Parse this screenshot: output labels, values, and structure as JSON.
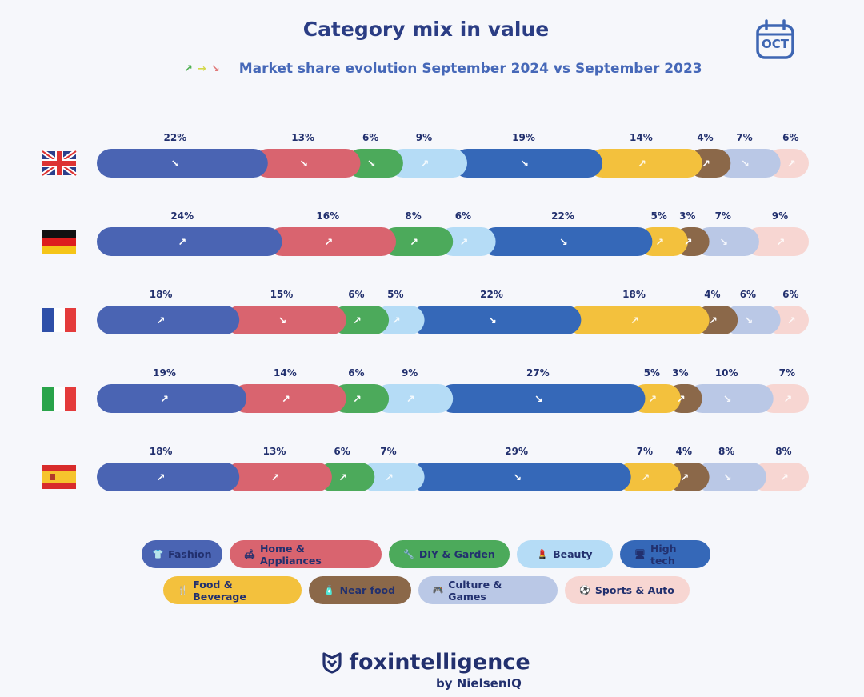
{
  "title": "Category mix in value",
  "subtitle": "Market share evolution September 2024 vs September 2023",
  "legend_arrows": [
    {
      "glyph": "↗",
      "color": "#4caf50"
    },
    {
      "glyph": "→",
      "color": "#d4d84a"
    },
    {
      "glyph": "↘",
      "color": "#e07a7a"
    }
  ],
  "calendar_label": "OCT",
  "brand": {
    "name": "foxintelligence",
    "byline": "by NielsenIQ"
  },
  "colors": {
    "Fashion": "#4a64b3",
    "Home & Appliances": "#d9646f",
    "DIY & Garden": "#4caa5b",
    "Beauty": "#b5dcf6",
    "High tech": "#3568b8",
    "Food & Beverage": "#f3c13d",
    "Near food": "#8b6849",
    "Culture & Games": "#bac8e6",
    "Sports & Auto": "#f7d6d2"
  },
  "legend": [
    {
      "label": "Fashion",
      "icon": "shirt-icon",
      "glyph": "👕"
    },
    {
      "label": "Home & Appliances",
      "icon": "sofa-icon",
      "glyph": "🛋"
    },
    {
      "label": "DIY & Garden",
      "icon": "tools-icon",
      "glyph": "🔧"
    },
    {
      "label": "Beauty",
      "icon": "lipstick-icon",
      "glyph": "💄"
    },
    {
      "label": "High tech",
      "icon": "monitor-icon",
      "glyph": "🖥"
    },
    {
      "label": "Food & Beverage",
      "icon": "cutlery-icon",
      "glyph": "🍴"
    },
    {
      "label": "Near food",
      "icon": "bottle-icon",
      "glyph": "🧴"
    },
    {
      "label": "Culture & Games",
      "icon": "gamepad-icon",
      "glyph": "🎮"
    },
    {
      "label": "Sports & Auto",
      "icon": "ball-icon",
      "glyph": "⚽"
    }
  ],
  "chart_data": {
    "type": "bar",
    "orientation": "horizontal",
    "stacked": true,
    "title": "Category mix in value",
    "subtitle": "Market share evolution September 2024 vs September 2023",
    "categories": [
      "UK",
      "Germany",
      "France",
      "Italy",
      "Spain"
    ],
    "series": [
      {
        "name": "Fashion",
        "values": [
          22,
          24,
          18,
          19,
          18
        ],
        "trend": [
          "down",
          "up",
          "up",
          "up",
          "up"
        ]
      },
      {
        "name": "Home & Appliances",
        "values": [
          13,
          16,
          15,
          14,
          13
        ],
        "trend": [
          "down",
          "up",
          "down",
          "up",
          "up"
        ]
      },
      {
        "name": "DIY & Garden",
        "values": [
          6,
          8,
          6,
          6,
          6
        ],
        "trend": [
          "down",
          "up",
          "up",
          "up",
          "up"
        ]
      },
      {
        "name": "Beauty",
        "values": [
          9,
          6,
          5,
          9,
          7
        ],
        "trend": [
          "up",
          "up",
          "up",
          "up",
          "up"
        ]
      },
      {
        "name": "High tech",
        "values": [
          19,
          22,
          22,
          27,
          29
        ],
        "trend": [
          "down",
          "down",
          "down",
          "down",
          "down"
        ]
      },
      {
        "name": "Food & Beverage",
        "values": [
          14,
          5,
          18,
          5,
          7
        ],
        "trend": [
          "up",
          "up",
          "up",
          "up",
          "up"
        ]
      },
      {
        "name": "Near food",
        "values": [
          4,
          3,
          4,
          3,
          4
        ],
        "trend": [
          "up",
          "up",
          "up",
          "up",
          "up"
        ]
      },
      {
        "name": "Culture & Games",
        "values": [
          7,
          7,
          6,
          10,
          8
        ],
        "trend": [
          "down",
          "down",
          "down",
          "down",
          "down"
        ]
      },
      {
        "name": "Sports & Auto",
        "values": [
          6,
          9,
          6,
          7,
          8
        ],
        "trend": [
          "up",
          "up",
          "up",
          "up",
          "up"
        ]
      }
    ],
    "ylim": [
      0,
      100
    ],
    "legend_position": "bottom"
  }
}
